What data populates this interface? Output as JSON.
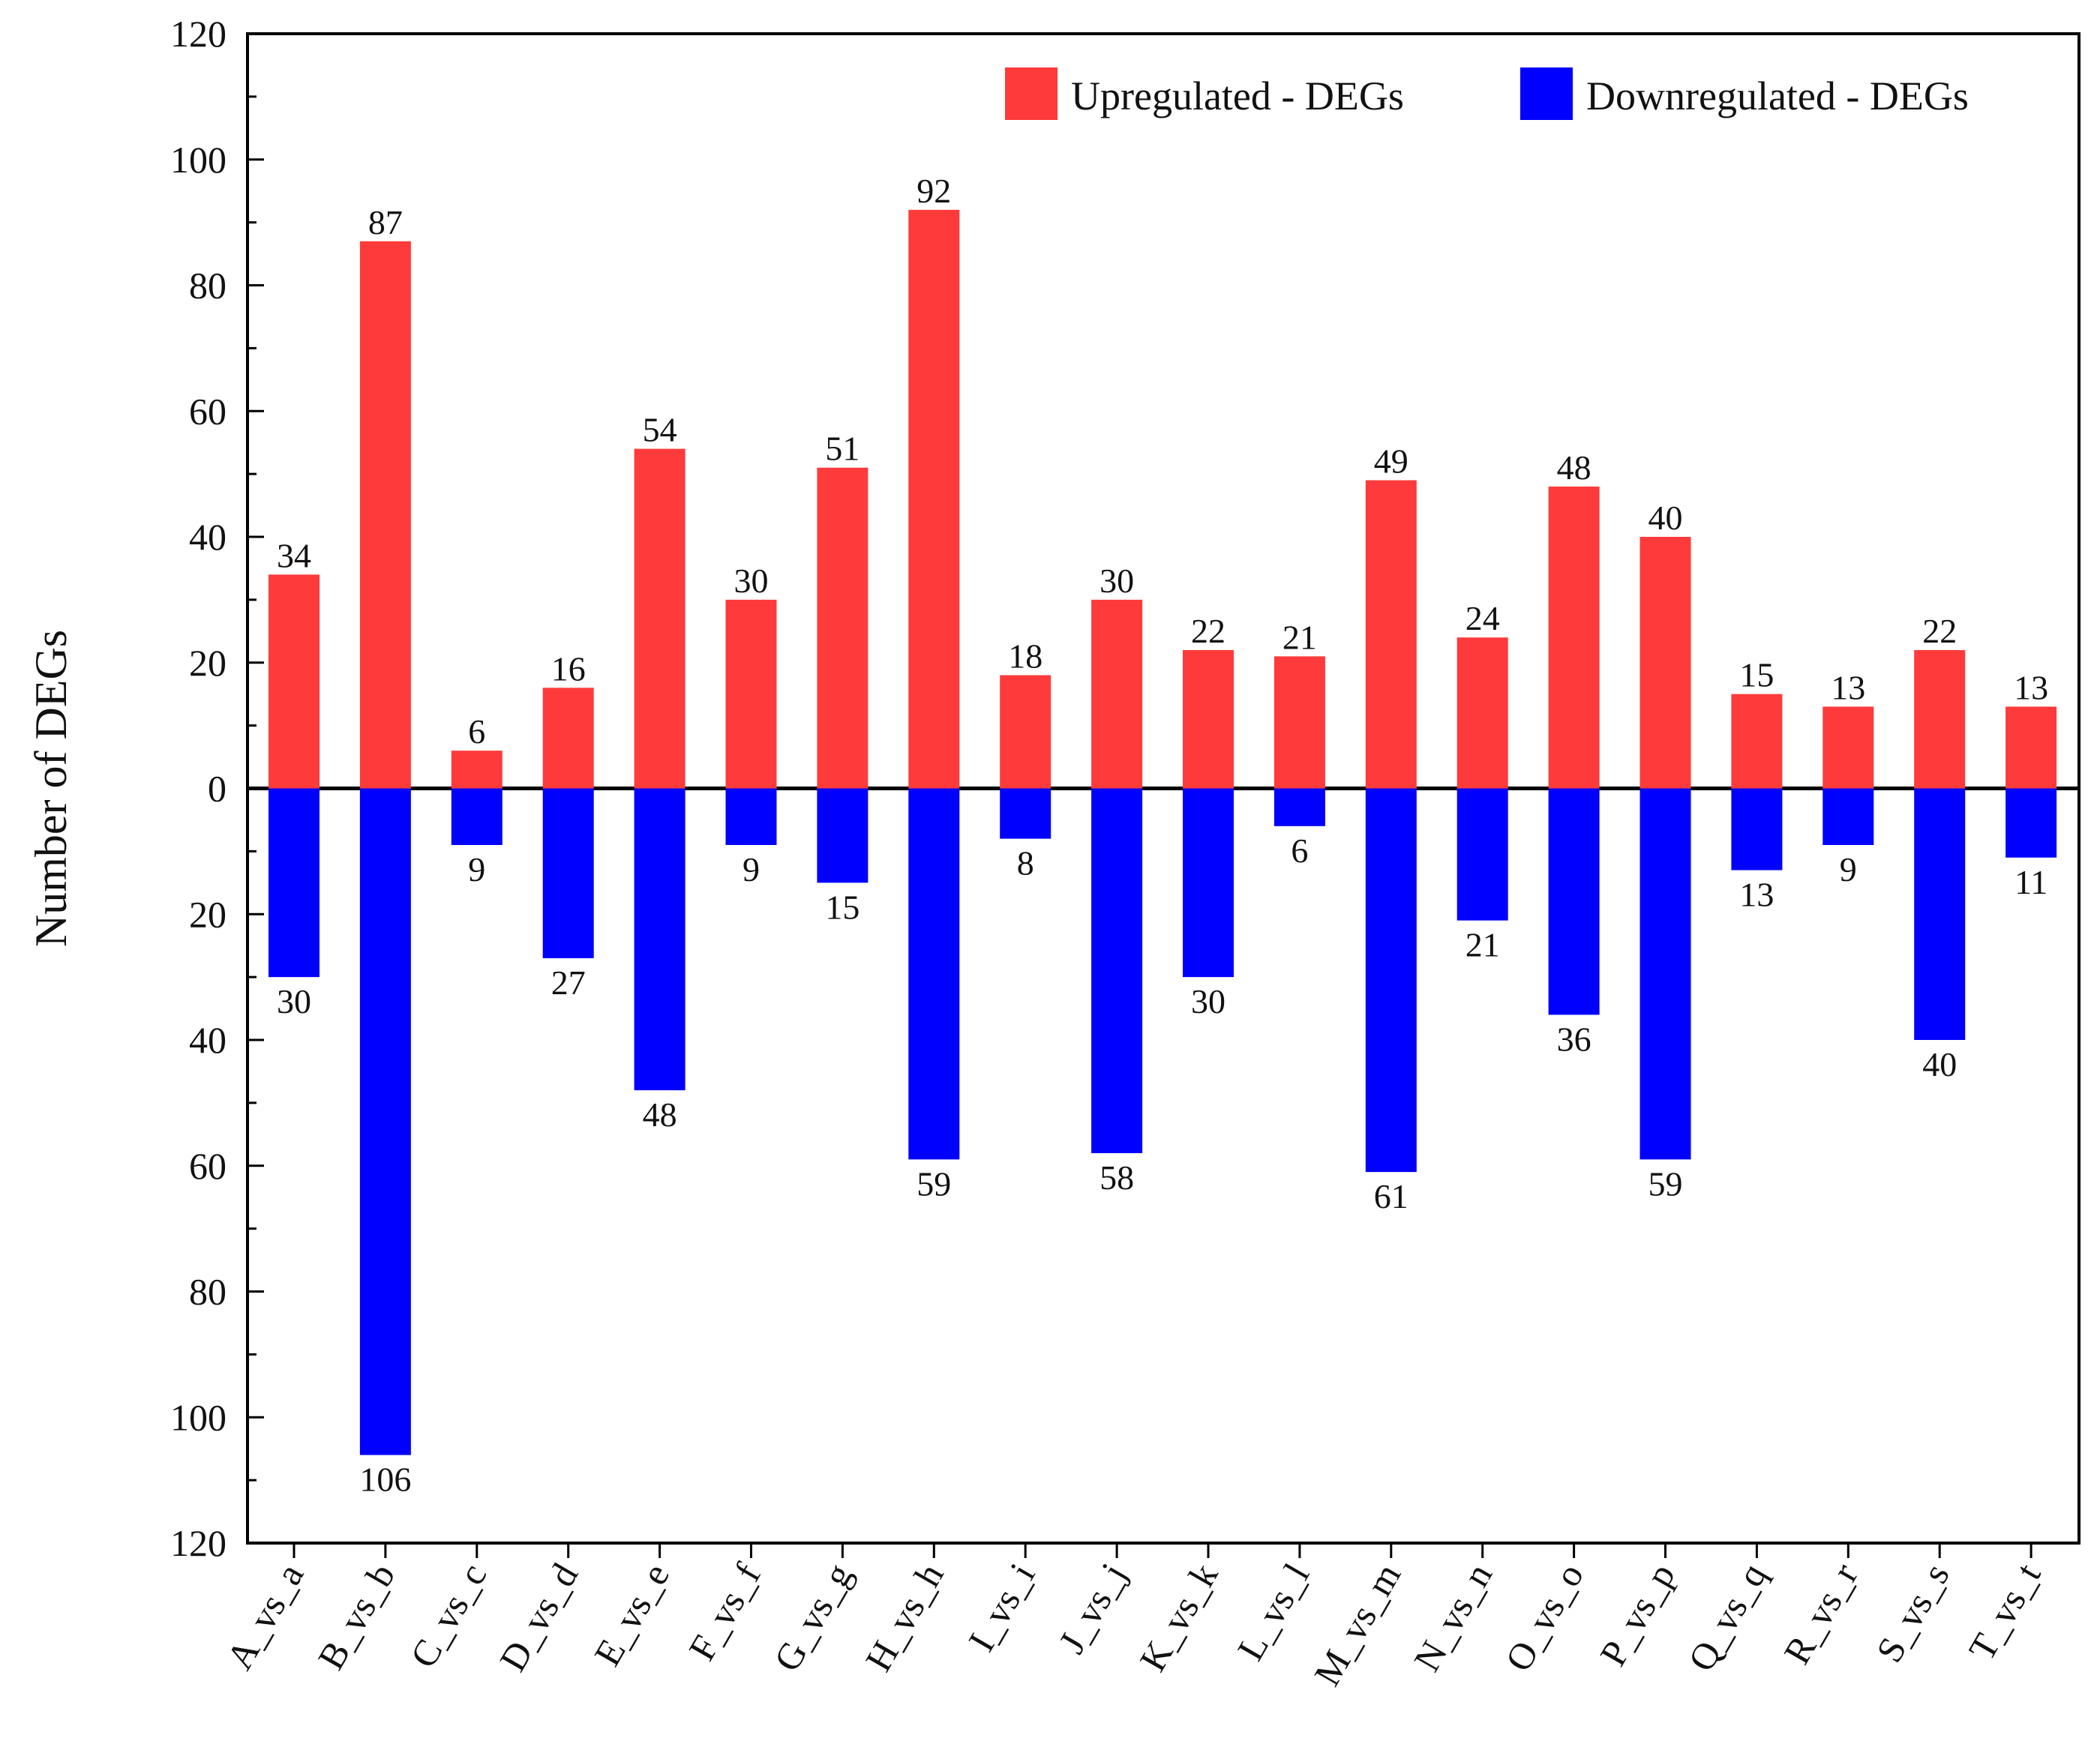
{
  "chart_data": {
    "type": "bar",
    "title": "",
    "xlabel": "",
    "ylabel": "Number of DEGs",
    "ylim": [
      -120,
      120
    ],
    "yticks": [
      120,
      100,
      80,
      60,
      40,
      20,
      0,
      20,
      40,
      60,
      80,
      100,
      120
    ],
    "categories": [
      "A_vs_a",
      "B_vs_b",
      "C_vs_c",
      "D_vs_d",
      "E_vs_e",
      "F_vs_f",
      "G_vs_g",
      "H_vs_h",
      "I_vs_i",
      "J_vs_j",
      "K_vs_k",
      "L_vs_l",
      "M_vs_m",
      "N_vs_n",
      "O_vs_o",
      "P_vs_p",
      "Q_vs_q",
      "R_vs_r",
      "S_vs_s",
      "T_vs_t"
    ],
    "series": [
      {
        "name": "Upregulated - DEGs",
        "color": "#ff3a3a",
        "direction": "up",
        "values": [
          34,
          87,
          6,
          16,
          54,
          30,
          51,
          92,
          18,
          30,
          22,
          21,
          49,
          24,
          48,
          40,
          15,
          13,
          22,
          13
        ]
      },
      {
        "name": "Downregulated - DEGs",
        "color": "#0000ff",
        "direction": "down",
        "values": [
          30,
          106,
          9,
          27,
          48,
          9,
          15,
          59,
          8,
          58,
          30,
          6,
          61,
          21,
          36,
          59,
          13,
          9,
          40,
          11
        ]
      }
    ],
    "legend_position": "top-right",
    "grid": false
  }
}
